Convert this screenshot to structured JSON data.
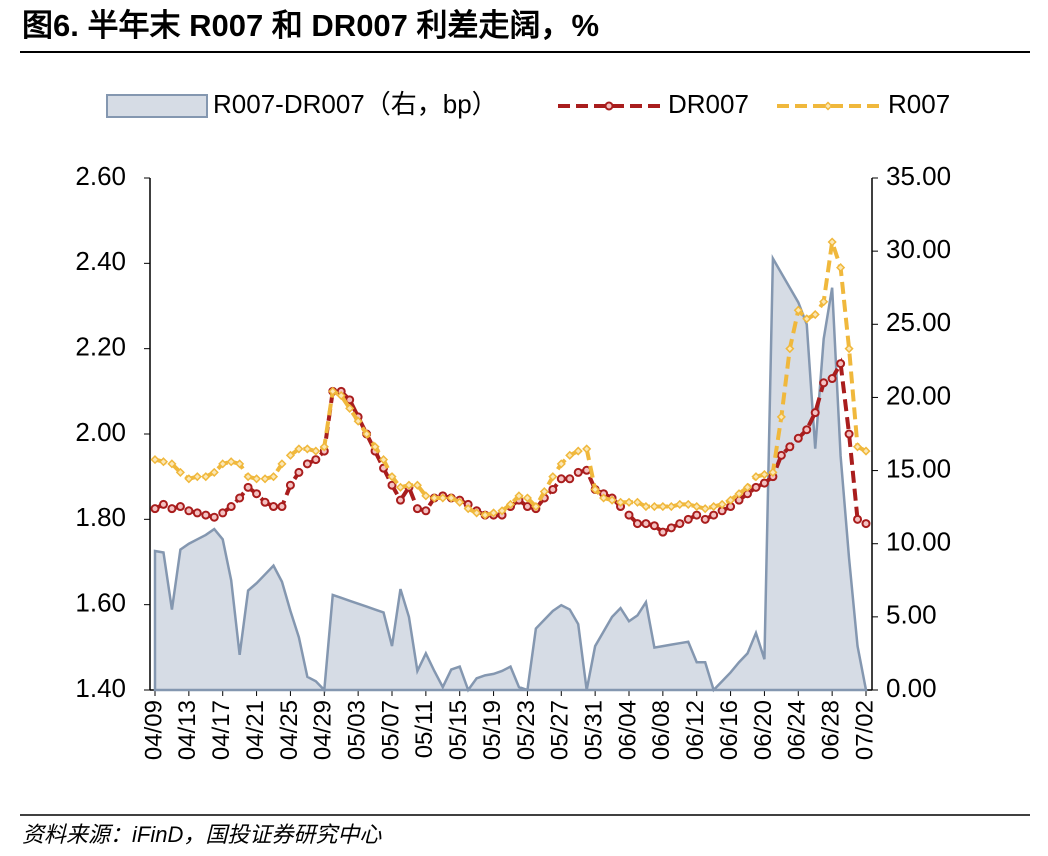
{
  "chart_data": {
    "type": "line",
    "title": "图6. 半年末 R007 和 DR007 利差走阔，%",
    "source": "资料来源：iFinD，国投证券研究中心",
    "categories": [
      "04/09",
      null,
      null,
      null,
      "04/13",
      null,
      null,
      null,
      "04/17",
      null,
      null,
      null,
      "04/21",
      null,
      null,
      null,
      "04/25",
      null,
      null,
      null,
      "04/29",
      null,
      null,
      null,
      "05/03",
      null,
      null,
      null,
      "05/07",
      null,
      null,
      null,
      "05/11",
      null,
      null,
      null,
      "05/15",
      null,
      null,
      null,
      "05/19",
      null,
      null,
      null,
      "05/23",
      null,
      null,
      null,
      "05/27",
      null,
      null,
      null,
      "05/31",
      null,
      null,
      null,
      "06/04",
      null,
      null,
      null,
      "06/08",
      null,
      null,
      null,
      "06/12",
      null,
      null,
      null,
      "06/16",
      null,
      null,
      null,
      "06/20",
      null,
      null,
      null,
      "06/24",
      null,
      null,
      null,
      "06/28",
      null,
      null,
      null,
      "07/02"
    ],
    "series": [
      {
        "name": "R007-DR007（右，bp）",
        "kind": "area",
        "axis": "y2",
        "color": "#d6dce5",
        "stroke": "#8497b0",
        "values": [
          9.5,
          9.4,
          5.5,
          9.6,
          10,
          10.3,
          10.6,
          11,
          10.3,
          7.5,
          2.4,
          6.8,
          7.3,
          7.9,
          8.5,
          7.4,
          5.4,
          3.6,
          0.9,
          0.6,
          0,
          6.5,
          6.3,
          6.1,
          5.9,
          5.7,
          5.5,
          5.3,
          3.0,
          6.9,
          5.0,
          1.3,
          2.5,
          1.3,
          0.2,
          1.4,
          1.6,
          0,
          0.8,
          1.0,
          1.1,
          1.3,
          1.6,
          0.2,
          0,
          4.2,
          4.8,
          5.4,
          5.8,
          5.5,
          4.5,
          0,
          3.0,
          4.0,
          5.0,
          5.6,
          4.7,
          5.1,
          6.0,
          2.9,
          3.0,
          3.1,
          3.2,
          3.3,
          1.9,
          1.9,
          0,
          0.6,
          1.2,
          1.9,
          2.5,
          3.9,
          2.1,
          29.5,
          28.5,
          27.5,
          26.5,
          25.0,
          16.5,
          24.0,
          27.5,
          16.0,
          9.0,
          3.0,
          0
        ]
      },
      {
        "name": "DR007",
        "kind": "line",
        "color": "#a91d1d",
        "values": [
          1.825,
          1.835,
          1.825,
          1.83,
          1.82,
          1.815,
          1.81,
          1.805,
          1.815,
          1.83,
          1.85,
          1.875,
          1.86,
          1.84,
          1.83,
          1.83,
          1.88,
          1.91,
          1.93,
          1.94,
          1.96,
          2.1,
          2.1,
          2.08,
          2.04,
          2.0,
          1.96,
          1.92,
          1.88,
          1.845,
          1.875,
          1.825,
          1.82,
          1.85,
          1.855,
          1.85,
          1.845,
          1.835,
          1.82,
          1.81,
          1.81,
          1.81,
          1.83,
          1.845,
          1.83,
          1.825,
          1.85,
          1.87,
          1.895,
          1.895,
          1.91,
          1.915,
          1.87,
          1.86,
          1.85,
          1.83,
          1.81,
          1.79,
          1.79,
          1.785,
          1.77,
          1.78,
          1.79,
          1.8,
          1.81,
          1.8,
          1.81,
          1.82,
          1.83,
          1.845,
          1.86,
          1.875,
          1.885,
          1.9,
          1.95,
          1.97,
          1.99,
          2.01,
          2.05,
          2.12,
          2.13,
          2.165,
          2.0,
          1.8,
          1.79
        ]
      },
      {
        "name": "R007",
        "kind": "line",
        "color": "#f0b83c",
        "values": [
          1.94,
          1.935,
          1.93,
          1.91,
          1.895,
          1.9,
          1.9,
          1.91,
          1.93,
          1.935,
          1.93,
          1.9,
          1.895,
          1.895,
          1.9,
          1.93,
          1.95,
          1.965,
          1.965,
          1.96,
          1.97,
          2.1,
          2.09,
          2.06,
          2.03,
          2.0,
          1.97,
          1.94,
          1.9,
          1.875,
          1.88,
          1.88,
          1.855,
          1.85,
          1.85,
          1.85,
          1.84,
          1.825,
          1.815,
          1.81,
          1.815,
          1.82,
          1.835,
          1.855,
          1.85,
          1.83,
          1.865,
          1.9,
          1.93,
          1.95,
          1.96,
          1.965,
          1.87,
          1.85,
          1.845,
          1.84,
          1.84,
          1.84,
          1.83,
          1.83,
          1.83,
          1.83,
          1.835,
          1.835,
          1.83,
          1.825,
          1.83,
          1.835,
          1.845,
          1.86,
          1.875,
          1.9,
          1.905,
          1.91,
          2.04,
          2.2,
          2.29,
          2.27,
          2.28,
          2.31,
          2.45,
          2.39,
          2.2,
          1.97,
          1.96
        ]
      }
    ],
    "ylim": [
      1.4,
      2.6
    ],
    "yticks": [
      {
        "value": 1.4,
        "label": "1.40"
      },
      {
        "value": 1.6,
        "label": "1.60"
      },
      {
        "value": 1.8,
        "label": "1.80"
      },
      {
        "value": 2.0,
        "label": "2.00"
      },
      {
        "value": 2.2,
        "label": "2.20"
      },
      {
        "value": 2.4,
        "label": "2.40"
      },
      {
        "value": 2.6,
        "label": "2.60"
      }
    ],
    "y2lim": [
      0,
      35
    ],
    "y2ticks": [
      {
        "value": 0,
        "label": "0.00"
      },
      {
        "value": 5,
        "label": "5.00"
      },
      {
        "value": 10,
        "label": "10.00"
      },
      {
        "value": 15,
        "label": "15.00"
      },
      {
        "value": 20,
        "label": "20.00"
      },
      {
        "value": 25,
        "label": "25.00"
      },
      {
        "value": 30,
        "label": "30.00"
      },
      {
        "value": 35,
        "label": "35.00"
      }
    ],
    "grid": false,
    "legend": "top"
  }
}
